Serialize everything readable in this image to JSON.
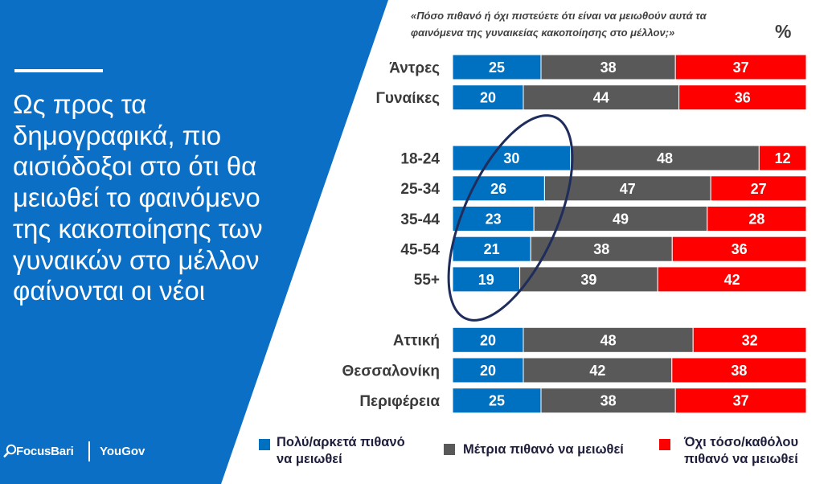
{
  "slide": {
    "panel_color": "#0c6fc6",
    "headline": "Ως προς τα δημογραφικά, πιο αισιόδοξοι στο ότι θα μειωθεί το φαινόμενο της κακοποίησης των γυναικών στο μέλλον φαίνονται οι νέοι"
  },
  "logos": {
    "focusbari": "FocusBari",
    "focusbari_icon": "magnifier-icon",
    "yougov": "YouGov"
  },
  "chart_data": {
    "type": "bar",
    "orientation": "horizontal",
    "stacked": true,
    "normalized": true,
    "title": "«Πόσο πιθανό ή όχι πιστεύετε ότι είναι να μειωθούν αυτά τα φαινόμενα της γυναικείας κακοποίησης στο μέλλον;»",
    "unit": "%",
    "categories": [
      "Άντρες",
      "Γυναίκες",
      "18-24",
      "25-34",
      "35-44",
      "45-54",
      "55+",
      "Αττική",
      "Θεσσαλονίκη",
      "Περιφέρεια"
    ],
    "group_sizes": [
      2,
      5,
      3
    ],
    "series": [
      {
        "name": "Πολύ/αρκετά πιθανό να μειωθεί",
        "color": "#0070c0",
        "values": [
          25,
          20,
          30,
          26,
          23,
          21,
          19,
          20,
          20,
          25
        ]
      },
      {
        "name": "Μέτρια πιθανό να μειωθεί",
        "color": "#595959",
        "values": [
          38,
          44,
          48,
          47,
          49,
          38,
          39,
          48,
          42,
          38
        ]
      },
      {
        "name": "Όχι τόσο/καθόλου πιθανό να μειωθεί",
        "color": "#ff0000",
        "values": [
          37,
          36,
          12,
          27,
          28,
          36,
          42,
          32,
          38,
          37
        ]
      }
    ],
    "highlight": {
      "shape": "ellipse",
      "color": "#1f2d5c",
      "series_index": 0,
      "category_indices": [
        2,
        3,
        4,
        5,
        6
      ]
    },
    "data_labels": true,
    "legend": "bottom",
    "grid": false,
    "axes": false
  }
}
